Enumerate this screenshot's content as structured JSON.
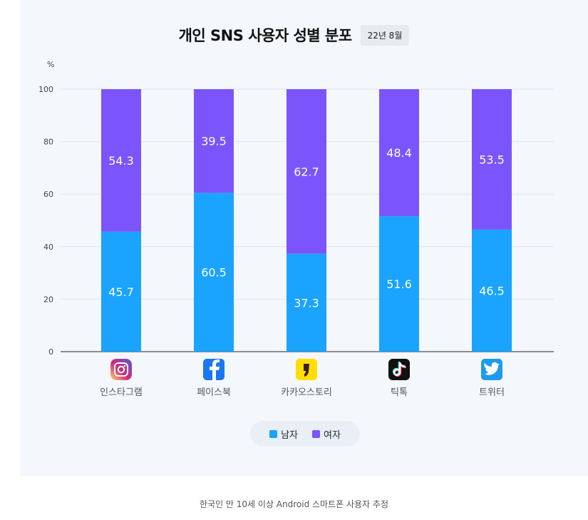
{
  "header": {
    "title": "개인 SNS 사용자 성별 분포",
    "date_badge": "22년 8월"
  },
  "colors": {
    "male": "#1aa3ff",
    "female": "#7b55fb",
    "grid": "#dde3ea",
    "axis": "#222222"
  },
  "chart_data": {
    "type": "bar",
    "stacked": true,
    "y_unit": "%",
    "categories": [
      "인스타그램",
      "페이스북",
      "카카오스토리",
      "틱톡",
      "트위터"
    ],
    "category_icons": [
      "instagram-icon",
      "facebook-icon",
      "kakaostory-icon",
      "tiktok-icon",
      "twitter-icon"
    ],
    "series": [
      {
        "name": "남자",
        "values": [
          45.7,
          60.5,
          37.3,
          51.6,
          46.5
        ]
      },
      {
        "name": "여자",
        "values": [
          54.3,
          39.5,
          62.7,
          48.4,
          53.5
        ]
      }
    ],
    "ylim": [
      0,
      100
    ],
    "yticks": [
      0,
      20,
      40,
      60,
      80,
      100
    ],
    "grid": true,
    "legend_position": "bottom"
  },
  "legend": {
    "male_label": "남자",
    "female_label": "여자"
  },
  "footnote": "한국인 만 10세 이상 Android 스마트폰 사용자 추정"
}
